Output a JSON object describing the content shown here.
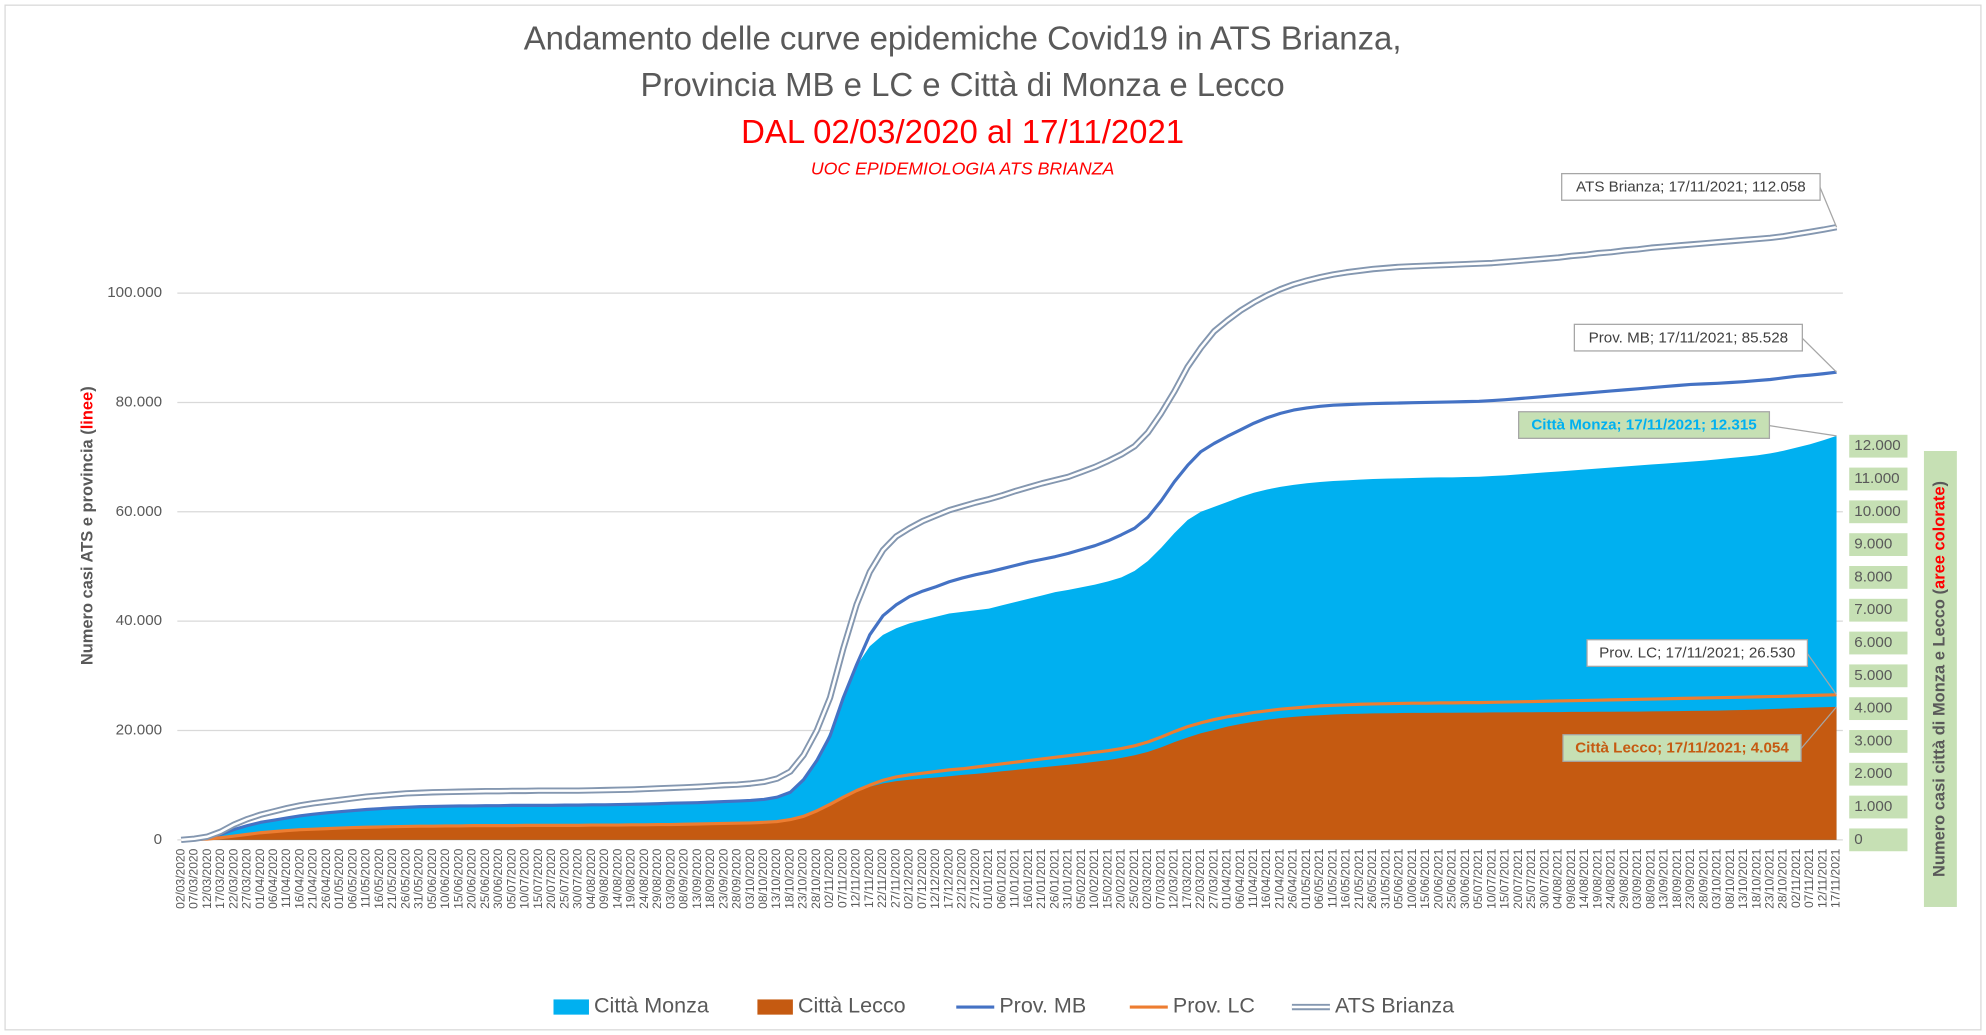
{
  "chart_data": {
    "type": "line",
    "title": [
      "Andamento delle curve epidemiche Covid19 in ATS Brianza,",
      "Provincia MB e LC e Città di Monza e Lecco"
    ],
    "subtitle": "DAL 02/03/2020 al 17/11/2021",
    "source": "UOC EPIDEMIOLOGIA ATS BRIANZA",
    "ylabel_parts": [
      "Numero casi ATS e  provincia (",
      "linee",
      ")"
    ],
    "y2label_parts": [
      "Numero casi città di Monza e Lecco (",
      "aree colorate",
      ")"
    ],
    "categories": [
      "02/03/2020",
      "07/03/2020",
      "12/03/2020",
      "17/03/2020",
      "22/03/2020",
      "27/03/2020",
      "01/04/2020",
      "06/04/2020",
      "11/04/2020",
      "16/04/2020",
      "21/04/2020",
      "26/04/2020",
      "01/05/2020",
      "06/05/2020",
      "11/05/2020",
      "16/05/2020",
      "21/05/2020",
      "26/05/2020",
      "31/05/2020",
      "05/06/2020",
      "10/06/2020",
      "15/06/2020",
      "20/06/2020",
      "25/06/2020",
      "30/06/2020",
      "05/07/2020",
      "10/07/2020",
      "15/07/2020",
      "20/07/2020",
      "25/07/2020",
      "30/07/2020",
      "04/08/2020",
      "09/08/2020",
      "14/08/2020",
      "19/08/2020",
      "24/08/2020",
      "29/08/2020",
      "03/09/2020",
      "08/09/2020",
      "13/09/2020",
      "18/09/2020",
      "23/09/2020",
      "28/09/2020",
      "03/10/2020",
      "08/10/2020",
      "13/10/2020",
      "18/10/2020",
      "23/10/2020",
      "28/10/2020",
      "02/11/2020",
      "07/11/2020",
      "12/11/2020",
      "17/11/2020",
      "22/11/2020",
      "27/11/2020",
      "02/12/2020",
      "07/12/2020",
      "12/12/2020",
      "17/12/2020",
      "22/12/2020",
      "27/12/2020",
      "01/01/2021",
      "06/01/2021",
      "11/01/2021",
      "16/01/2021",
      "21/01/2021",
      "26/01/2021",
      "31/01/2021",
      "05/02/2021",
      "10/02/2021",
      "15/02/2021",
      "20/02/2021",
      "25/02/2021",
      "02/03/2021",
      "07/03/2021",
      "12/03/2021",
      "17/03/2021",
      "22/03/2021",
      "27/03/2021",
      "01/04/2021",
      "06/04/2021",
      "11/04/2021",
      "16/04/2021",
      "21/04/2021",
      "26/04/2021",
      "01/05/2021",
      "06/05/2021",
      "11/05/2021",
      "16/05/2021",
      "21/05/2021",
      "26/05/2021",
      "31/05/2021",
      "05/06/2021",
      "10/06/2021",
      "15/06/2021",
      "20/06/2021",
      "25/06/2021",
      "30/06/2021",
      "05/07/2021",
      "10/07/2021",
      "15/07/2021",
      "20/07/2021",
      "25/07/2021",
      "30/07/2021",
      "04/08/2021",
      "09/08/2021",
      "14/08/2021",
      "19/08/2021",
      "24/08/2021",
      "29/08/2021",
      "03/09/2021",
      "08/09/2021",
      "13/09/2021",
      "18/09/2021",
      "23/09/2021",
      "28/09/2021",
      "03/10/2021",
      "08/10/2021",
      "13/10/2021",
      "18/10/2021",
      "23/10/2021",
      "28/10/2021",
      "02/11/2021",
      "07/11/2021",
      "12/11/2021",
      "17/11/2021"
    ],
    "series": [
      {
        "name": "Città Monza",
        "kind": "area",
        "axis": "y2",
        "color": "#00b0f0",
        "values": [
          0,
          20,
          60,
          150,
          300,
          420,
          520,
          600,
          680,
          750,
          800,
          850,
          880,
          910,
          940,
          960,
          980,
          1000,
          1010,
          1020,
          1030,
          1030,
          1040,
          1040,
          1050,
          1050,
          1050,
          1060,
          1060,
          1060,
          1070,
          1070,
          1080,
          1080,
          1090,
          1100,
          1110,
          1120,
          1130,
          1150,
          1170,
          1190,
          1210,
          1230,
          1260,
          1320,
          1450,
          1800,
          2400,
          3300,
          4400,
          5300,
          5900,
          6250,
          6450,
          6600,
          6700,
          6800,
          6900,
          6950,
          7000,
          7050,
          7150,
          7250,
          7350,
          7450,
          7550,
          7620,
          7700,
          7780,
          7880,
          8000,
          8200,
          8500,
          8900,
          9350,
          9750,
          10000,
          10150,
          10300,
          10450,
          10580,
          10680,
          10760,
          10820,
          10870,
          10910,
          10940,
          10960,
          10980,
          11000,
          11010,
          11020,
          11030,
          11040,
          11050,
          11050,
          11060,
          11070,
          11090,
          11110,
          11140,
          11170,
          11200,
          11230,
          11260,
          11290,
          11320,
          11350,
          11380,
          11410,
          11440,
          11470,
          11500,
          11530,
          11560,
          11600,
          11640,
          11680,
          11720,
          11780,
          11860,
          11960,
          12060,
          12180,
          12315
        ]
      },
      {
        "name": "Città Lecco",
        "kind": "area",
        "axis": "y2",
        "color": "#c55a11",
        "values": [
          0,
          10,
          30,
          80,
          140,
          200,
          250,
          290,
          320,
          340,
          360,
          375,
          385,
          395,
          400,
          405,
          410,
          415,
          420,
          420,
          425,
          425,
          430,
          430,
          430,
          430,
          435,
          435,
          435,
          440,
          440,
          440,
          445,
          445,
          450,
          455,
          460,
          465,
          470,
          475,
          480,
          490,
          500,
          510,
          530,
          560,
          620,
          720,
          880,
          1080,
          1300,
          1480,
          1620,
          1720,
          1790,
          1830,
          1870,
          1900,
          1940,
          1980,
          2010,
          2050,
          2090,
          2130,
          2170,
          2210,
          2250,
          2290,
          2330,
          2380,
          2430,
          2500,
          2580,
          2680,
          2820,
          2980,
          3120,
          3250,
          3350,
          3450,
          3530,
          3600,
          3660,
          3710,
          3750,
          3780,
          3800,
          3820,
          3835,
          3845,
          3855,
          3860,
          3865,
          3870,
          3870,
          3875,
          3875,
          3880,
          3880,
          3885,
          3885,
          3890,
          3890,
          3895,
          3895,
          3900,
          3900,
          3905,
          3905,
          3910,
          3910,
          3915,
          3920,
          3925,
          3930,
          3935,
          3940,
          3950,
          3960,
          3970,
          3985,
          4000,
          4015,
          4030,
          4040,
          4054
        ]
      },
      {
        "name": "Prov. MB",
        "kind": "line",
        "color": "#4472c4",
        "values": [
          0,
          150,
          400,
          1000,
          1900,
          2600,
          3200,
          3600,
          4000,
          4400,
          4700,
          4950,
          5150,
          5350,
          5550,
          5700,
          5850,
          5950,
          6050,
          6100,
          6150,
          6200,
          6200,
          6250,
          6250,
          6300,
          6300,
          6300,
          6300,
          6350,
          6350,
          6400,
          6400,
          6450,
          6500,
          6550,
          6600,
          6700,
          6750,
          6800,
          6900,
          7000,
          7100,
          7200,
          7400,
          7800,
          8700,
          11000,
          14500,
          19000,
          26000,
          32000,
          37500,
          41000,
          43000,
          44500,
          45500,
          46300,
          47200,
          47900,
          48500,
          49000,
          49600,
          50200,
          50800,
          51300,
          51800,
          52400,
          53100,
          53800,
          54700,
          55800,
          57000,
          59000,
          62000,
          65500,
          68500,
          71000,
          72500,
          73800,
          75000,
          76200,
          77200,
          78000,
          78600,
          79000,
          79300,
          79500,
          79600,
          79700,
          79800,
          79850,
          79900,
          79950,
          80000,
          80050,
          80100,
          80150,
          80200,
          80350,
          80500,
          80700,
          80900,
          81100,
          81300,
          81500,
          81700,
          81900,
          82100,
          82300,
          82500,
          82700,
          82900,
          83100,
          83300,
          83400,
          83500,
          83650,
          83800,
          84000,
          84200,
          84500,
          84800,
          85000,
          85250,
          85528
        ]
      },
      {
        "name": "Prov. LC",
        "kind": "line",
        "color": "#ed7d31",
        "values": [
          0,
          50,
          150,
          400,
          700,
          1000,
          1300,
          1500,
          1700,
          1850,
          1950,
          2050,
          2150,
          2250,
          2300,
          2350,
          2400,
          2450,
          2500,
          2500,
          2550,
          2550,
          2600,
          2600,
          2600,
          2600,
          2650,
          2650,
          2650,
          2650,
          2650,
          2700,
          2700,
          2700,
          2750,
          2750,
          2800,
          2800,
          2850,
          2900,
          2950,
          3000,
          3050,
          3100,
          3200,
          3350,
          3700,
          4300,
          5300,
          6500,
          7800,
          9000,
          10000,
          10900,
          11500,
          11900,
          12200,
          12500,
          12800,
          13000,
          13300,
          13600,
          13900,
          14200,
          14500,
          14800,
          15100,
          15400,
          15700,
          16000,
          16300,
          16700,
          17200,
          17900,
          18800,
          19800,
          20700,
          21400,
          22000,
          22500,
          22900,
          23300,
          23600,
          23900,
          24100,
          24300,
          24500,
          24600,
          24700,
          24800,
          24850,
          24900,
          24950,
          25000,
          25000,
          25050,
          25050,
          25100,
          25100,
          25150,
          25200,
          25250,
          25300,
          25350,
          25400,
          25450,
          25500,
          25550,
          25600,
          25650,
          25700,
          25750,
          25800,
          25850,
          25900,
          25950,
          26000,
          26050,
          26100,
          26150,
          26200,
          26250,
          26330,
          26400,
          26470,
          26530
        ]
      },
      {
        "name": "ATS Brianza",
        "kind": "double-line",
        "color": "#8497b0",
        "values": [
          0,
          200,
          600,
          1500,
          2800,
          3800,
          4600,
          5200,
          5800,
          6300,
          6700,
          7000,
          7300,
          7600,
          7900,
          8100,
          8300,
          8500,
          8600,
          8700,
          8750,
          8800,
          8850,
          8900,
          8900,
          8950,
          8950,
          9000,
          9000,
          9000,
          9000,
          9050,
          9100,
          9150,
          9200,
          9300,
          9400,
          9500,
          9600,
          9700,
          9850,
          10000,
          10100,
          10300,
          10600,
          11200,
          12500,
          15500,
          20000,
          26000,
          35000,
          43000,
          49000,
          53000,
          55500,
          57000,
          58300,
          59300,
          60300,
          61000,
          61700,
          62300,
          63000,
          63800,
          64500,
          65200,
          65800,
          66400,
          67300,
          68200,
          69300,
          70500,
          72000,
          74500,
          78000,
          82000,
          86500,
          90000,
          93000,
          95000,
          96800,
          98300,
          99600,
          100700,
          101600,
          102300,
          102900,
          103400,
          103800,
          104100,
          104400,
          104600,
          104800,
          104900,
          105000,
          105100,
          105200,
          105300,
          105400,
          105500,
          105700,
          105900,
          106100,
          106300,
          106500,
          106800,
          107000,
          107300,
          107500,
          107800,
          108000,
          108300,
          108500,
          108700,
          108900,
          109100,
          109300,
          109500,
          109700,
          109900,
          110100,
          110400,
          110800,
          111200,
          111600,
          112058
        ]
      }
    ],
    "ylim": [
      0,
      120000
    ],
    "yticks": [
      0,
      {
        "value": 20000,
        "label": "20.000"
      },
      {
        "value": 40000,
        "label": "40.000"
      },
      {
        "value": 60000,
        "label": "60.000"
      },
      {
        "value": 80000,
        "label": "80.000"
      },
      {
        "value": 100000,
        "label": "100.000"
      }
    ],
    "y2lim": [
      0,
      20000
    ],
    "y2ticks": [
      0,
      {
        "value": 1000,
        "label": "1.000"
      },
      {
        "value": 2000,
        "label": "2.000"
      },
      {
        "value": 3000,
        "label": "3.000"
      },
      {
        "value": 4000,
        "label": "4.000"
      },
      {
        "value": 5000,
        "label": "5.000"
      },
      {
        "value": 6000,
        "label": "6.000"
      },
      {
        "value": 7000,
        "label": "7.000"
      },
      {
        "value": 8000,
        "label": "8.000"
      },
      {
        "value": 9000,
        "label": "9.000"
      },
      {
        "value": 10000,
        "label": "10.000"
      },
      {
        "value": 11000,
        "label": "11.000"
      },
      {
        "value": 12000,
        "label": "12.000"
      }
    ],
    "grid": true,
    "legend": "bottom",
    "annotations": [
      "ATS Brianza; 17/11/2021; 112.058",
      "Prov. MB; 17/11/2021; 85.528",
      "Città Monza; 17/11/2021; 12.315",
      "Prov. LC; 17/11/2021; 26.530",
      "Città Lecco; 17/11/2021; 4.054"
    ]
  }
}
